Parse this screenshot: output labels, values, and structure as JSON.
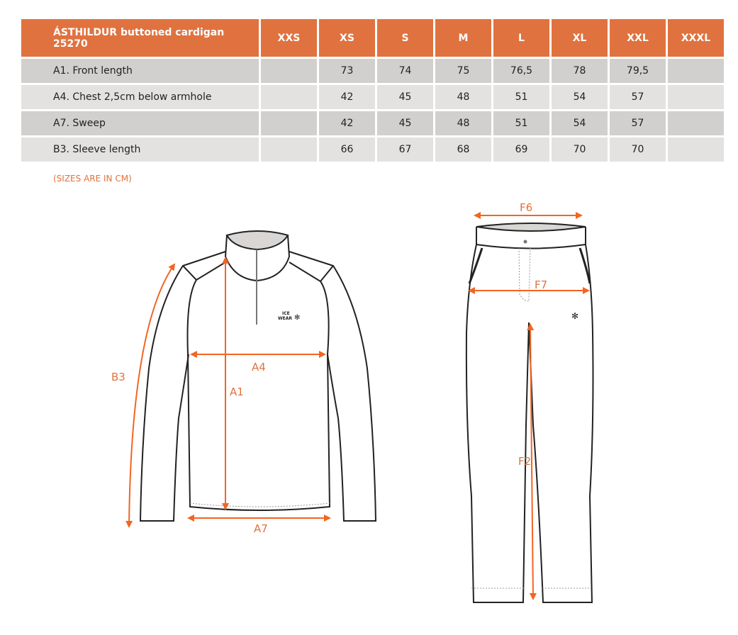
{
  "table": {
    "title": "ÁSTHILDUR buttoned cardigan 25270",
    "sizes": [
      "XXS",
      "XS",
      "S",
      "M",
      "L",
      "XL",
      "XXL",
      "XXXL"
    ],
    "rows": [
      {
        "label": "A1. Front length",
        "values": [
          "",
          "73",
          "74",
          "75",
          "76,5",
          "78",
          "79,5",
          ""
        ]
      },
      {
        "label": "A4. Chest 2,5cm below armhole",
        "values": [
          "",
          "42",
          "45",
          "48",
          "51",
          "54",
          "57",
          ""
        ]
      },
      {
        "label": "A7. Sweep",
        "values": [
          "",
          "42",
          "45",
          "48",
          "51",
          "54",
          "57",
          ""
        ]
      },
      {
        "label": "B3. Sleeve length",
        "values": [
          "",
          "66",
          "67",
          "68",
          "69",
          "70",
          "70",
          ""
        ]
      }
    ]
  },
  "note": "(SIZES ARE IN CM)",
  "jacket": {
    "labels": {
      "a1": "A1",
      "a4": "A4",
      "a7": "A7",
      "b3": "B3"
    },
    "logo_line1": "ICE",
    "logo_line2": "WEAR"
  },
  "pants": {
    "labels": {
      "f6": "F6",
      "f7": "F7",
      "f2": "F2"
    }
  },
  "colors": {
    "header": "#e0723f",
    "arrow": "#f26522",
    "row_dark": "#d1d0ce",
    "row_light": "#e3e2e0"
  }
}
